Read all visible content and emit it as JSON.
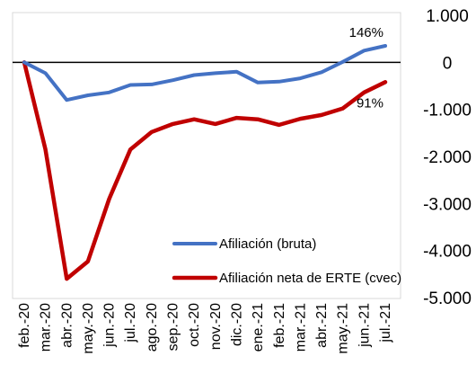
{
  "chart_data": {
    "type": "line",
    "categories": [
      "feb.-20",
      "mar.-20",
      "abr.-20",
      "may.-20",
      "jun.-20",
      "jul.-20",
      "ago.-20",
      "sep.-20",
      "oct.-20",
      "nov.-20",
      "dic.-20",
      "ene.-21",
      "feb.-21",
      "mar.-21",
      "abr.-21",
      "may.-21",
      "jun.-21",
      "jul.-21"
    ],
    "ytick_labels": [
      "1.000",
      "0",
      "-1.000",
      "-2.000",
      "-3.000",
      "-4.000",
      "-5.000"
    ],
    "ytick_values": [
      1000,
      0,
      -1000,
      -2000,
      -3000,
      -4000,
      -5000
    ],
    "ylim": [
      -5000,
      1000
    ],
    "y_axis_side": "right",
    "grid": false,
    "zero_line": true,
    "legend_position": "lower-center",
    "series": [
      {
        "name": "Afiliación (bruta)",
        "color": "#4472C4",
        "x": [
          "feb.-20",
          "mar.-20",
          "abr.-20",
          "may.-20",
          "jun.-20",
          "jul.-20",
          "ago.-20",
          "sep.-20",
          "oct.-20",
          "nov.-20",
          "dic.-20",
          "ene.-21",
          "feb.-21",
          "mar.-21",
          "abr.-21",
          "may.-21",
          "jun.-21",
          "jul.-21"
        ],
        "values": [
          0,
          -230,
          -800,
          -700,
          -640,
          -480,
          -470,
          -380,
          -270,
          -230,
          -200,
          -430,
          -410,
          -340,
          -210,
          10,
          250,
          350
        ]
      },
      {
        "name": "Afiliación neta de ERTE (cvec)",
        "color": "#C00000",
        "x": [
          "feb.-20",
          "mar.-20",
          "abr.-20",
          "may.-20",
          "jun.-20",
          "jul.-20",
          "ago.-20",
          "sep.-20",
          "oct.-20",
          "nov.-20",
          "dic.-20",
          "ene.-21",
          "feb.-21",
          "mar.-21",
          "abr.-21",
          "may.-21",
          "jun.-21",
          "jul.-21"
        ],
        "values": [
          0,
          -1850,
          -4600,
          -4230,
          -2900,
          -1850,
          -1480,
          -1310,
          -1210,
          -1310,
          -1180,
          -1210,
          -1330,
          -1200,
          -1120,
          -980,
          -640,
          -420
        ]
      }
    ],
    "annotations": [
      {
        "text": "146%",
        "series": "Afiliación (bruta)",
        "at": "jul.-21",
        "placement": "above"
      },
      {
        "text": "91%",
        "series": "Afiliación neta de ERTE (cvec)",
        "at": "jul.-21",
        "placement": "below"
      }
    ]
  }
}
